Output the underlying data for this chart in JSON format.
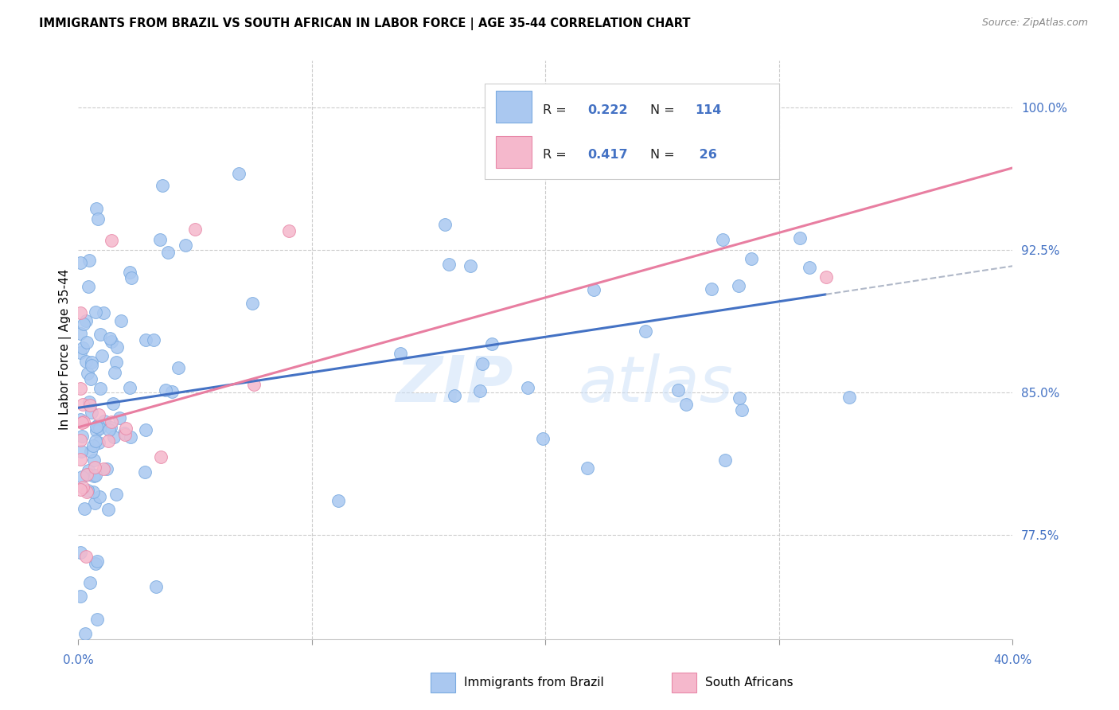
{
  "title": "IMMIGRANTS FROM BRAZIL VS SOUTH AFRICAN IN LABOR FORCE | AGE 35-44 CORRELATION CHART",
  "source": "Source: ZipAtlas.com",
  "ylabel": "In Labor Force | Age 35-44",
  "yticks": [
    77.5,
    85.0,
    92.5,
    100.0
  ],
  "ytick_labels": [
    "77.5%",
    "85.0%",
    "92.5%",
    "100.0%"
  ],
  "xmin": 0.0,
  "xmax": 0.4,
  "ymin": 72.0,
  "ymax": 102.5,
  "brazil_color": "#aac8f0",
  "brazil_edge": "#7aaae0",
  "sa_color": "#f5b8cc",
  "sa_edge": "#e888a8",
  "brazil_R": 0.222,
  "brazil_N": 114,
  "sa_R": 0.417,
  "sa_N": 26,
  "trend_brazil_color": "#4472c4",
  "trend_sa_color": "#e87ea1",
  "trend_extend_color": "#b0b8c8",
  "watermark_zip": "ZIP",
  "watermark_atlas": "atlas",
  "legend_brazil_label": "R = 0.222   N = 114",
  "legend_sa_label": "R = 0.417   N =  26"
}
